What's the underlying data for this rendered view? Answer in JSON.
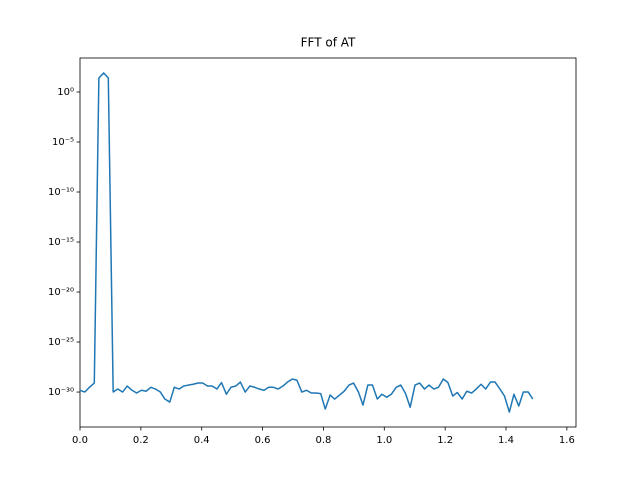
{
  "chart_data": {
    "type": "line",
    "title": "FFT of AT",
    "yscale": "log",
    "color": "#1f77b4",
    "x": [
      0,
      0.016,
      0.031,
      0.047,
      0.062,
      0.078,
      0.093,
      0.109,
      0.124,
      0.14,
      0.155,
      0.171,
      0.186,
      0.202,
      0.217,
      0.233,
      0.248,
      0.264,
      0.279,
      0.295,
      0.31,
      0.326,
      0.341,
      0.357,
      0.372,
      0.388,
      0.403,
      0.419,
      0.434,
      0.45,
      0.465,
      0.481,
      0.496,
      0.512,
      0.527,
      0.543,
      0.558,
      0.574,
      0.589,
      0.605,
      0.62,
      0.636,
      0.651,
      0.667,
      0.682,
      0.698,
      0.713,
      0.729,
      0.744,
      0.76,
      0.775,
      0.791,
      0.806,
      0.822,
      0.837,
      0.853,
      0.868,
      0.884,
      0.899,
      0.915,
      0.93,
      0.946,
      0.961,
      0.977,
      0.992,
      1.008,
      1.023,
      1.039,
      1.054,
      1.07,
      1.085,
      1.101,
      1.116,
      1.132,
      1.147,
      1.163,
      1.178,
      1.194,
      1.209,
      1.225,
      1.24,
      1.256,
      1.271,
      1.287,
      1.302,
      1.318,
      1.333,
      1.349,
      1.364,
      1.38,
      1.395,
      1.411,
      1.426,
      1.442,
      1.457,
      1.473,
      1.488
    ],
    "values": [
      1.5e-30,
      1e-30,
      3e-30,
      8e-30,
      25,
      80,
      25,
      1e-30,
      2e-30,
      1e-30,
      4e-30,
      1.5e-30,
      8e-31,
      1.5e-30,
      1.2e-30,
      3e-30,
      2e-30,
      1e-30,
      2e-31,
      1e-31,
      3e-30,
      2e-30,
      4e-30,
      5e-30,
      6e-30,
      8e-30,
      8e-30,
      4e-30,
      4e-30,
      2e-30,
      9e-30,
      6e-31,
      3e-30,
      4e-30,
      1e-29,
      1e-30,
      4e-30,
      3e-30,
      2e-30,
      1.5e-30,
      3e-30,
      3e-30,
      2e-30,
      4e-30,
      1e-29,
      2e-29,
      1.5e-29,
      1e-30,
      1.5e-30,
      8e-31,
      8e-31,
      7e-31,
      2e-32,
      5e-31,
      2e-31,
      5e-31,
      1.2e-30,
      5e-30,
      8e-30,
      1e-30,
      5e-32,
      5e-30,
      5e-30,
      2e-31,
      6e-31,
      3e-31,
      6e-31,
      3e-30,
      5e-30,
      7e-31,
      3e-32,
      5e-30,
      8e-30,
      2e-30,
      5e-30,
      2e-30,
      3e-30,
      2e-29,
      9e-30,
      4e-31,
      9e-31,
      2e-31,
      1.2e-30,
      8e-31,
      2e-30,
      6e-30,
      2e-30,
      1e-29,
      1e-29,
      2e-30,
      4e-31,
      1e-32,
      6e-31,
      4e-32,
      1e-30,
      1e-30,
      2e-31
    ],
    "xlim": [
      0,
      1.63
    ],
    "ylim": [
      3.2e-34,
      2500.0
    ],
    "xticks": [
      {
        "value": 0,
        "label": "0.0"
      },
      {
        "value": 0.2,
        "label": "0.2"
      },
      {
        "value": 0.4,
        "label": "0.4"
      },
      {
        "value": 0.6,
        "label": "0.6"
      },
      {
        "value": 0.8,
        "label": "0.8"
      },
      {
        "value": 1.0,
        "label": "1.0"
      },
      {
        "value": 1.2,
        "label": "1.2"
      },
      {
        "value": 1.4,
        "label": "1.4"
      },
      {
        "value": 1.6,
        "label": "1.6"
      }
    ],
    "yticks": [
      {
        "value": 1,
        "label": "10⁰"
      },
      {
        "value": 1e-05,
        "label": "10⁻⁵"
      },
      {
        "value": 1e-10,
        "label": "10⁻¹⁰"
      },
      {
        "value": 1e-15,
        "label": "10⁻¹⁵"
      },
      {
        "value": 1e-20,
        "label": "10⁻²⁰"
      },
      {
        "value": 1e-25,
        "label": "10⁻²⁵"
      },
      {
        "value": 1e-30,
        "label": "10⁻³⁰"
      }
    ]
  }
}
